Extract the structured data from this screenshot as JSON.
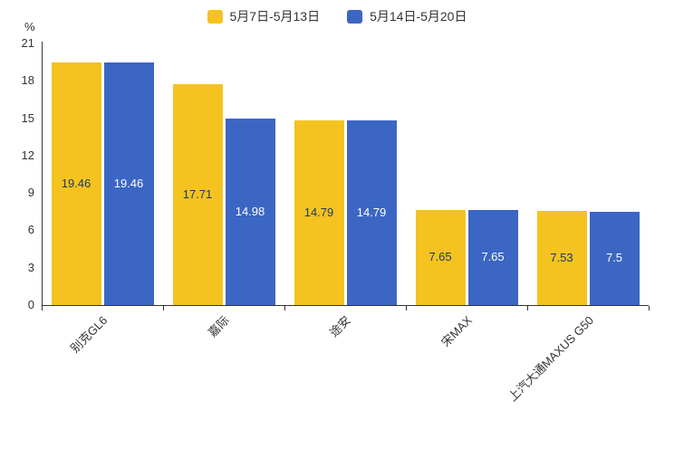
{
  "chart_data": {
    "type": "bar",
    "title": "",
    "unit": "%",
    "categories": [
      "别克GL6",
      "嘉际",
      "途安",
      "宋MAX",
      "上汽大通MAXUS G50"
    ],
    "series": [
      {
        "name": "5月7日-5月13日",
        "color": "#F4C320",
        "label_color": "#1F3A60",
        "values": [
          19.46,
          17.71,
          14.79,
          7.65,
          7.53
        ]
      },
      {
        "name": "5月14日-5月20日",
        "color": "#3B66C4",
        "label_color": "#FFFFFF",
        "values": [
          19.46,
          14.98,
          14.79,
          7.65,
          7.5
        ]
      }
    ],
    "ylim": [
      0,
      21
    ],
    "yticks": [
      0,
      3,
      6,
      9,
      12,
      15,
      18,
      21
    ],
    "legend_position": "top-center",
    "grid": "off"
  }
}
